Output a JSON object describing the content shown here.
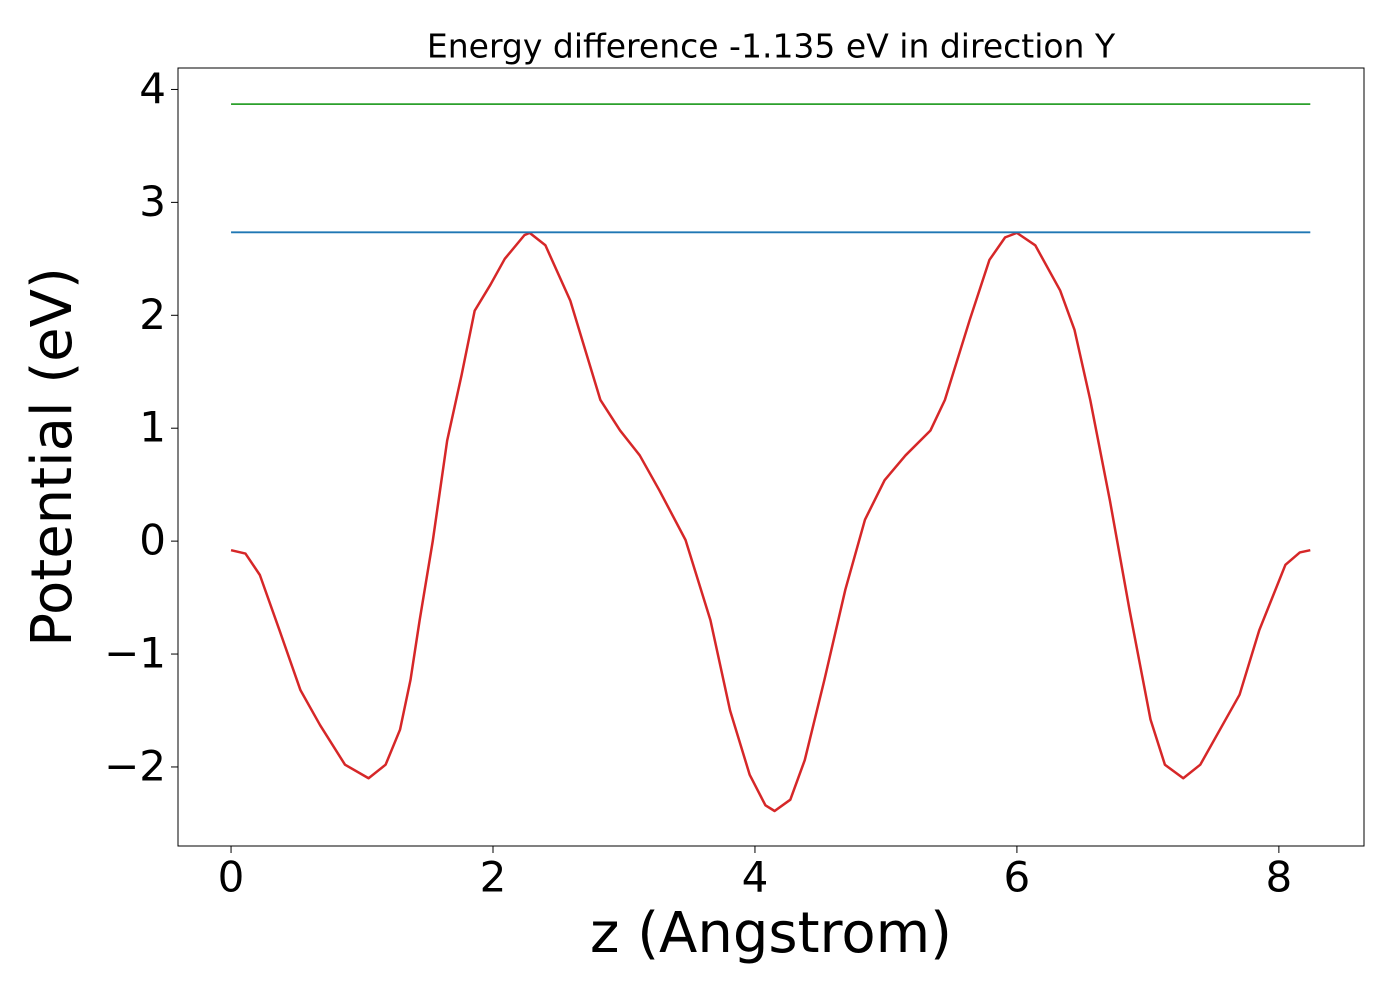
{
  "chart_data": {
    "type": "line",
    "title": "Energy difference -1.135 eV in direction Y",
    "xlabel": "z (Angstrom)",
    "ylabel": "Potential (eV)",
    "xlim": [
      -0.405,
      8.65
    ],
    "ylim": [
      -2.7,
      4.19
    ],
    "xticks": [
      0,
      2,
      4,
      6,
      8
    ],
    "yticks": [
      {
        "value": -2,
        "label": "−2"
      },
      {
        "value": -1,
        "label": "−1"
      },
      0,
      1,
      2,
      3,
      4
    ],
    "grid": false,
    "series": [
      {
        "color": "#d62728",
        "x": [
          0,
          0.11,
          0.22,
          0.37,
          0.53,
          0.68,
          0.87,
          1.05,
          1.18,
          1.29,
          1.37,
          1.44,
          1.54,
          1.65,
          1.76,
          1.86,
          1.98,
          2.09,
          2.24,
          2.28,
          2.4,
          2.59,
          2.82,
          2.97,
          3.12,
          3.27,
          3.47,
          3.66,
          3.81,
          3.96,
          4.08,
          4.15,
          4.27,
          4.38,
          4.53,
          4.69,
          4.84,
          4.99,
          5.15,
          5.34,
          5.45,
          5.64,
          5.79,
          5.91,
          6.0,
          6.14,
          6.33,
          6.44,
          6.56,
          6.71,
          6.86,
          7.02,
          7.13,
          7.27,
          7.4,
          7.55,
          7.7,
          7.85,
          8.05,
          8.16,
          8.24
        ],
        "values": [
          -0.08,
          -0.11,
          -0.3,
          -0.79,
          -1.32,
          -1.63,
          -1.98,
          -2.1,
          -1.98,
          -1.67,
          -1.23,
          -0.7,
          0.0,
          0.89,
          1.47,
          2.04,
          2.27,
          2.5,
          2.71,
          2.73,
          2.62,
          2.13,
          1.25,
          0.98,
          0.76,
          0.45,
          0.01,
          -0.7,
          -1.5,
          -2.07,
          -2.34,
          -2.39,
          -2.29,
          -1.94,
          -1.23,
          -0.43,
          0.19,
          0.54,
          0.76,
          0.98,
          1.25,
          1.96,
          2.49,
          2.69,
          2.73,
          2.62,
          2.22,
          1.87,
          1.25,
          0.36,
          -0.61,
          -1.58,
          -1.98,
          -2.1,
          -1.98,
          -1.67,
          -1.36,
          -0.79,
          -0.21,
          -0.1,
          -0.08
        ]
      },
      {
        "color": "#1f77b4",
        "x": [
          0,
          8.24
        ],
        "values": [
          2.735,
          2.735
        ]
      },
      {
        "color": "#2ca02c",
        "x": [
          0,
          8.24
        ],
        "values": [
          3.87,
          3.87
        ]
      }
    ]
  }
}
